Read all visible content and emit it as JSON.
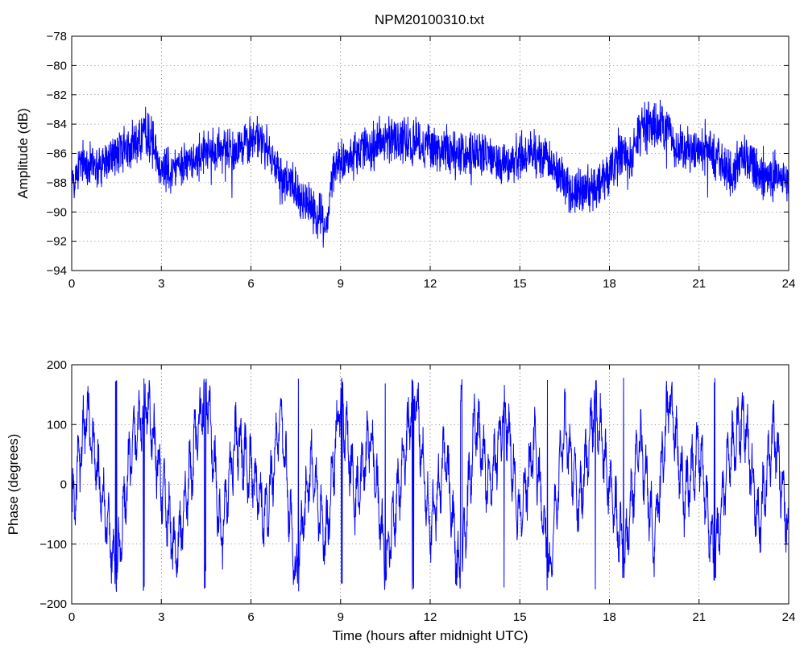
{
  "chart_data": [
    {
      "type": "line",
      "title": "NPM20100310.txt",
      "xlabel": "",
      "ylabel": "Amplitude (dB)",
      "xlim": [
        0,
        24
      ],
      "ylim": [
        -94,
        -78
      ],
      "x_ticks": [
        "0",
        "3",
        "6",
        "9",
        "12",
        "15",
        "18",
        "21",
        "24"
      ],
      "y_ticks": [
        "-94",
        "-92",
        "-90",
        "-88",
        "-86",
        "-84",
        "-82",
        "-80",
        "-78"
      ],
      "grid": true,
      "color": "#0000ff",
      "series": [
        {
          "x": [
            0,
            0.25,
            0.5,
            0.75,
            1,
            1.25,
            1.5,
            1.75,
            2,
            2.25,
            2.5,
            2.75,
            3,
            3.25,
            3.5,
            3.75,
            4,
            4.25,
            4.5,
            4.75,
            5,
            5.25,
            5.5,
            5.75,
            6,
            6.25,
            6.5,
            6.75,
            7,
            7.25,
            7.5,
            7.75,
            8,
            8.25,
            8.5,
            8.75,
            9,
            9.25,
            9.5,
            9.75,
            10,
            10.25,
            10.5,
            10.75,
            11,
            11.25,
            11.5,
            11.75,
            12,
            12.25,
            12.5,
            12.75,
            13,
            13.25,
            13.5,
            13.75,
            14,
            14.25,
            14.5,
            14.75,
            15,
            15.25,
            15.5,
            15.75,
            16,
            16.25,
            16.5,
            16.75,
            17,
            17.25,
            17.5,
            17.75,
            18,
            18.25,
            18.5,
            18.75,
            19,
            19.25,
            19.5,
            19.75,
            20,
            20.25,
            20.5,
            20.75,
            21,
            21.25,
            21.5,
            21.75,
            22,
            22.25,
            22.5,
            22.75,
            23,
            23.25,
            23.5,
            23.75,
            24
          ],
          "y": [
            -88,
            -87,
            -86.5,
            -86.8,
            -87,
            -86.5,
            -86,
            -85.8,
            -85.5,
            -85,
            -84.5,
            -85.5,
            -86.8,
            -87,
            -87,
            -86.5,
            -86.5,
            -86.2,
            -86,
            -86,
            -85.8,
            -85.5,
            -85.5,
            -85.5,
            -85,
            -85,
            -85.5,
            -87,
            -87.5,
            -88,
            -88.5,
            -89,
            -89.5,
            -90,
            -91,
            -87.5,
            -86.5,
            -86.5,
            -86,
            -85.8,
            -85.5,
            -85.2,
            -85,
            -85,
            -85,
            -85.2,
            -85.2,
            -85.5,
            -85.5,
            -85.8,
            -85.8,
            -86,
            -86,
            -86.2,
            -86,
            -86,
            -86.2,
            -86.5,
            -86.5,
            -86.5,
            -86.2,
            -86,
            -86,
            -86,
            -86.5,
            -87.5,
            -88,
            -88.5,
            -88.5,
            -88.5,
            -88.5,
            -88,
            -87,
            -86.5,
            -86,
            -86.5,
            -84.5,
            -84,
            -84,
            -84,
            -84.5,
            -85.5,
            -85.5,
            -85.8,
            -86,
            -86,
            -86,
            -86.5,
            -87.5,
            -87,
            -86.5,
            -86.5,
            -87.5,
            -87.5,
            -87.5,
            -87.5,
            -88
          ]
        }
      ]
    },
    {
      "type": "line",
      "title": "",
      "xlabel": "Time (hours after midnight UTC)",
      "ylabel": "Phase (degrees)",
      "xlim": [
        0,
        24
      ],
      "ylim": [
        -200,
        200
      ],
      "x_ticks": [
        "0",
        "3",
        "6",
        "9",
        "12",
        "15",
        "18",
        "21",
        "24"
      ],
      "y_ticks": [
        "-200",
        "-100",
        "0",
        "100",
        "200"
      ],
      "grid": true,
      "color": "#0000ff",
      "phase_wraps_between": [
        -180,
        180
      ],
      "series": [
        {
          "x": [
            0,
            0.5,
            1,
            1.5,
            2,
            2.5,
            3,
            3.5,
            4,
            4.5,
            5,
            5.5,
            6,
            6.5,
            7,
            7.5,
            8,
            8.5,
            9,
            9.5,
            10,
            10.5,
            11,
            11.5,
            12,
            12.5,
            13,
            13.5,
            14,
            14.5,
            15,
            15.5,
            16,
            16.5,
            17,
            17.5,
            18,
            18.5,
            19,
            19.5,
            20,
            20.5,
            21,
            21.5,
            22,
            22.5,
            23,
            23.5,
            24
          ],
          "y": [
            -50,
            120,
            -20,
            -150,
            60,
            140,
            0,
            -120,
            30,
            170,
            -90,
            80,
            20,
            -60,
            120,
            -160,
            40,
            -100,
            150,
            -30,
            90,
            -140,
            10,
            160,
            -80,
            50,
            -170,
            110,
            -10,
            130,
            -60,
            70,
            -150,
            100,
            -40,
            140,
            0,
            -120,
            80,
            -90,
            150,
            -20,
            60,
            -130,
            40,
            120,
            -70,
            90,
            -80
          ]
        }
      ]
    }
  ]
}
